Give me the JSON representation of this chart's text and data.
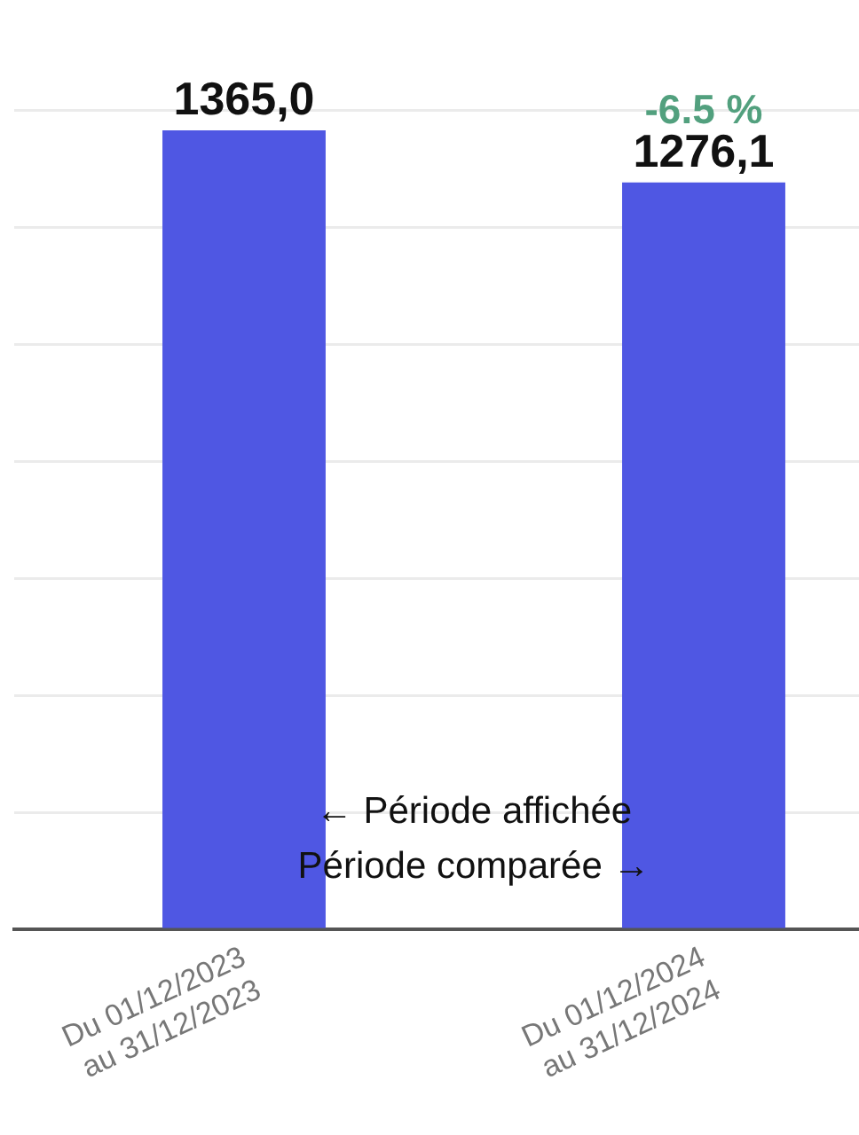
{
  "chart_data": {
    "type": "bar",
    "categories": [
      "Du 01/12/2023\nau 31/12/2023",
      "Du 01/12/2024\nau 31/12/2024"
    ],
    "values": [
      1365.0,
      1276.1
    ],
    "color": "#4f57e3",
    "value_labels": [
      "1365,0",
      "1276,1"
    ],
    "annotations": [
      {
        "text": "-6.5 %",
        "x": "Du 01/12/2024\nau 31/12/2024",
        "y": 1276.1
      },
      "← Période affichée",
      "Période comparée →"
    ],
    "ylim": [
      0,
      1400
    ],
    "yticks": [
      {
        "value": 0,
        "label": null
      },
      {
        "value": 200,
        "label": null
      },
      {
        "value": 400,
        "label": null
      },
      {
        "value": 600,
        "label": null
      },
      {
        "value": 800,
        "label": null
      },
      {
        "value": 1000,
        "label": null
      },
      {
        "value": 1200,
        "label": null
      },
      {
        "value": 1400,
        "label": null
      }
    ],
    "grid": "y",
    "tick_labels": "x"
  }
}
